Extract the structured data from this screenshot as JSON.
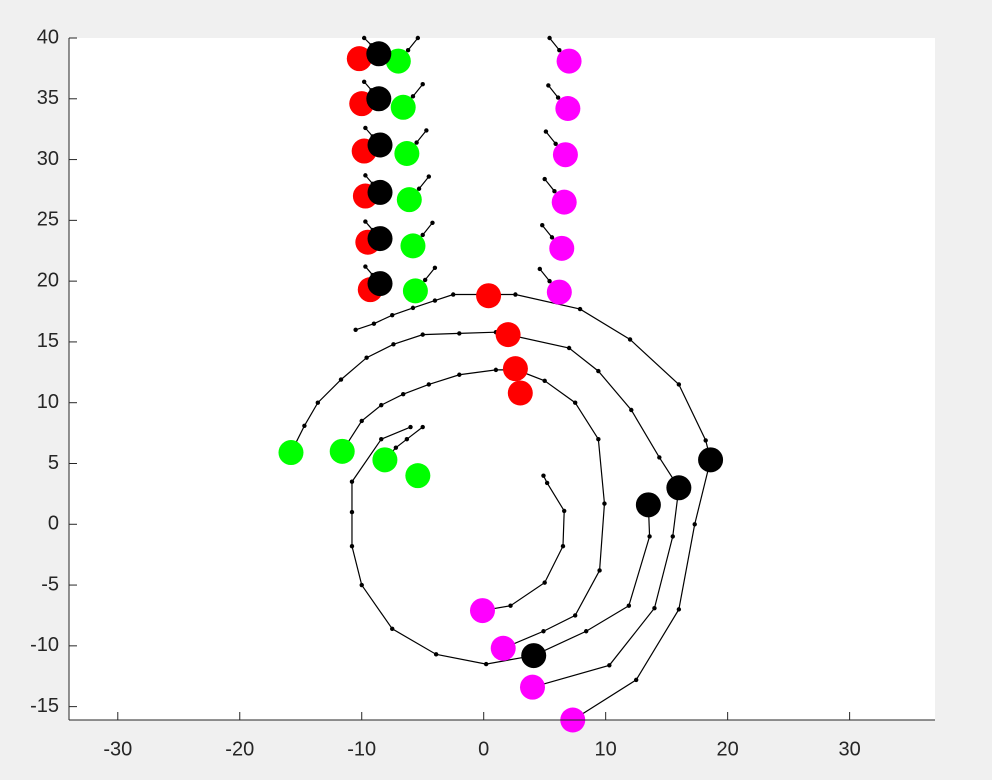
{
  "chart_data": {
    "type": "scatter",
    "xlim": [
      -34,
      37
    ],
    "ylim": [
      -16.1,
      40
    ],
    "xticks": [
      -30,
      -20,
      -10,
      0,
      10,
      20,
      30
    ],
    "yticks": [
      40,
      35,
      30,
      25,
      20,
      15,
      10,
      5,
      0,
      -5,
      -10,
      -15
    ],
    "lines": [
      {
        "color": "#000000",
        "x": [
          -10.5,
          -9,
          -7.5,
          -5.8,
          -4,
          -2.5,
          0,
          2.6,
          7.9,
          12,
          16,
          18.2,
          18.6,
          17.3,
          16,
          12.5,
          7.3
        ],
        "values": [
          16,
          16.5,
          17.2,
          17.8,
          18.4,
          18.9,
          18.9,
          18.9,
          17.7,
          15.2,
          11.5,
          6.9,
          5.3,
          0,
          -7,
          -12.8,
          -16.1
        ]
      },
      {
        "color": "#000000",
        "x": [
          -15.8,
          -14.7,
          -13.6,
          -11.7,
          -9.6,
          -7.4,
          -5,
          -2,
          1,
          2,
          7,
          9.4,
          12.1,
          14.4,
          16,
          15.5,
          14,
          10.3,
          4
        ],
        "values": [
          5.9,
          8.1,
          10,
          11.9,
          13.7,
          14.8,
          15.6,
          15.7,
          15.8,
          15.6,
          14.5,
          12.6,
          9.4,
          5.5,
          3,
          -1,
          -6.9,
          -11.6,
          -13.4
        ]
      },
      {
        "color": "#000000",
        "x": [
          -11.6,
          -10,
          -8.4,
          -6.6,
          -4.5,
          -2,
          1,
          2.7,
          5,
          7.5,
          9.4,
          9.9,
          9.5,
          7.5,
          4.9,
          1.6
        ],
        "values": [
          6,
          8.5,
          9.8,
          10.7,
          11.5,
          12.3,
          12.7,
          12.7,
          11.8,
          10,
          7,
          1.7,
          -3.8,
          -7.5,
          -8.8,
          -10.2
        ]
      },
      {
        "color": "#000000",
        "x": [
          -6,
          -8.4,
          -10.8,
          -10.8,
          -10.8,
          -10,
          -7.5,
          -3.9,
          0.2,
          4.1,
          8.4,
          11.9,
          13.6,
          13.5
        ],
        "values": [
          8,
          7,
          3.5,
          1,
          -1.8,
          -5,
          -8.6,
          -10.7,
          -11.5,
          -10.8,
          -8.8,
          -6.7,
          -1,
          1.6
        ]
      },
      {
        "color": "#000000",
        "x": [
          -8.1,
          -7.2,
          -6.3,
          -5
        ],
        "values": [
          5.3,
          6.3,
          7,
          8
        ]
      },
      {
        "color": "#000000",
        "x": [
          -0.1,
          2.2,
          5,
          6.5,
          6.6,
          5.2,
          4.9
        ],
        "values": [
          -7.1,
          -6.7,
          -4.8,
          -1.8,
          1.1,
          3.4,
          4
        ]
      },
      {
        "color": "#000000",
        "x": [
          -5.4,
          -4.8
        ],
        "values": [
          4,
          4
        ]
      },
      {
        "color": "#000000",
        "x": [
          -7,
          -6.2,
          -5.4
        ],
        "values": [
          38.1,
          39,
          40
        ]
      },
      {
        "color": "#000000",
        "x": [
          7,
          6.2,
          5.4
        ],
        "values": [
          38.1,
          39,
          40
        ]
      },
      {
        "color": "#000000",
        "x": [
          -8.6,
          -9.2,
          -9.8
        ],
        "values": [
          38.7,
          39.4,
          40
        ]
      },
      {
        "color": "#000000",
        "x": [
          -6.6,
          -5.8,
          -5
        ],
        "values": [
          34.3,
          35.2,
          36.2
        ]
      },
      {
        "color": "#000000",
        "x": [
          6.9,
          6.1,
          5.3
        ],
        "values": [
          34.2,
          35.1,
          36.1
        ]
      },
      {
        "color": "#000000",
        "x": [
          -8.6,
          -9.2,
          -9.8
        ],
        "values": [
          35,
          35.7,
          36.4
        ]
      },
      {
        "color": "#000000",
        "x": [
          -6.3,
          -5.5,
          -4.7
        ],
        "values": [
          30.5,
          31.4,
          32.4
        ]
      },
      {
        "color": "#000000",
        "x": [
          6.7,
          5.9,
          5.1
        ],
        "values": [
          30.4,
          31.3,
          32.3
        ]
      },
      {
        "color": "#000000",
        "x": [
          -8.5,
          -9.1,
          -9.7
        ],
        "values": [
          31.2,
          31.9,
          32.6
        ]
      },
      {
        "color": "#000000",
        "x": [
          -6.1,
          -5.3,
          -4.5
        ],
        "values": [
          26.7,
          27.6,
          28.6
        ]
      },
      {
        "color": "#000000",
        "x": [
          6.6,
          5.8,
          5
        ],
        "values": [
          26.5,
          27.4,
          28.4
        ]
      },
      {
        "color": "#000000",
        "x": [
          -8.5,
          -9.1,
          -9.7
        ],
        "values": [
          27.3,
          28,
          28.7
        ]
      },
      {
        "color": "#000000",
        "x": [
          -5.8,
          -5,
          -4.2
        ],
        "values": [
          22.9,
          23.8,
          24.8
        ]
      },
      {
        "color": "#000000",
        "x": [
          6.4,
          5.6,
          4.8
        ],
        "values": [
          22.7,
          23.6,
          24.6
        ]
      },
      {
        "color": "#000000",
        "x": [
          -8.5,
          -9.1,
          -9.7
        ],
        "values": [
          23.5,
          24.2,
          24.9
        ]
      },
      {
        "color": "#000000",
        "x": [
          -5.6,
          -4.8,
          -4
        ],
        "values": [
          19.2,
          20.1,
          21.1
        ]
      },
      {
        "color": "#000000",
        "x": [
          6.2,
          5.4,
          4.6
        ],
        "values": [
          19.1,
          20,
          21
        ]
      },
      {
        "color": "#000000",
        "x": [
          -8.5,
          -9.1,
          -9.7
        ],
        "values": [
          19.8,
          20.5,
          21.2
        ]
      }
    ],
    "series": [
      {
        "color": "#ff0000",
        "x": [
          -10.2,
          -10,
          -9.8,
          -9.7,
          -9.5,
          -9.3,
          0.4,
          2,
          2.6,
          3
        ],
        "values": [
          38.3,
          34.6,
          30.7,
          27,
          23.2,
          19.3,
          18.8,
          15.6,
          12.8,
          10.8
        ]
      },
      {
        "color": "#00ff00",
        "x": [
          -7,
          -6.6,
          -6.3,
          -6.1,
          -5.8,
          -5.6,
          -15.8,
          -11.6,
          -8.1,
          -5.4
        ],
        "values": [
          38.1,
          34.3,
          30.5,
          26.7,
          22.9,
          19.2,
          5.9,
          6,
          5.3,
          4
        ]
      },
      {
        "color": "#ff00ff",
        "x": [
          7,
          6.9,
          6.7,
          6.6,
          6.4,
          6.2,
          -0.1,
          1.6,
          4,
          7.3
        ],
        "values": [
          38.1,
          34.2,
          30.4,
          26.5,
          22.7,
          19.1,
          -7.1,
          -10.2,
          -13.4,
          -16.1
        ]
      },
      {
        "color": "#000000",
        "x": [
          -8.6,
          -8.6,
          -8.5,
          -8.5,
          -8.5,
          -8.5,
          18.6,
          16,
          13.5,
          4.1
        ],
        "values": [
          38.7,
          35,
          31.2,
          27.3,
          23.5,
          19.8,
          5.3,
          3,
          1.6,
          -10.8
        ]
      }
    ]
  }
}
